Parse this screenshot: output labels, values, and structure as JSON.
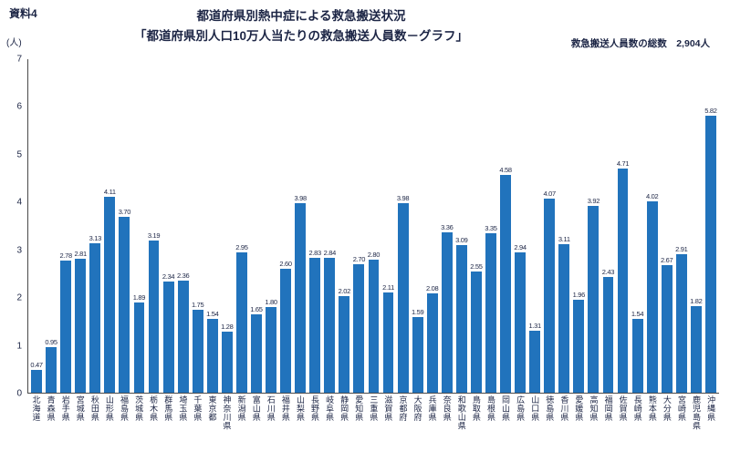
{
  "header": {
    "doc_label": "資料4",
    "title_line1": "都道府県別熱中症による救急搬送状況",
    "title_line2": "「都道府県別人口10万人当たりの救急搬送人員数－グラフ」",
    "total_label": "救急搬送人員数の総数　2,904人"
  },
  "chart_data": {
    "type": "bar",
    "title": "都道府県別人口10万人当たりの救急搬送人員数－グラフ",
    "y_unit": "(人)",
    "xlabel": "",
    "ylabel": "(人)",
    "ylim": [
      0,
      7
    ],
    "ytick_step": 1,
    "grid": false,
    "legend": false,
    "bar_color": "#2173bc",
    "categories": [
      "北海道",
      "青森県",
      "岩手県",
      "宮城県",
      "秋田県",
      "山形県",
      "福島県",
      "茨城県",
      "栃木県",
      "群馬県",
      "埼玉県",
      "千葉県",
      "東京都",
      "神奈川県",
      "新潟県",
      "富山県",
      "石川県",
      "福井県",
      "山梨県",
      "長野県",
      "岐阜県",
      "静岡県",
      "愛知県",
      "三重県",
      "滋賀県",
      "京都府",
      "大阪府",
      "兵庫県",
      "奈良県",
      "和歌山県",
      "鳥取県",
      "島根県",
      "岡山県",
      "広島県",
      "山口県",
      "徳島県",
      "香川県",
      "愛媛県",
      "高知県",
      "福岡県",
      "佐賀県",
      "長崎県",
      "熊本県",
      "大分県",
      "宮崎県",
      "鹿児島県",
      "沖縄県"
    ],
    "values": [
      0.47,
      0.95,
      2.78,
      2.81,
      3.13,
      4.11,
      3.7,
      1.89,
      3.19,
      2.34,
      2.36,
      1.75,
      1.54,
      1.28,
      2.95,
      1.65,
      1.8,
      2.6,
      3.98,
      2.83,
      2.84,
      2.02,
      2.7,
      2.8,
      2.11,
      3.98,
      1.59,
      2.08,
      3.36,
      3.09,
      2.55,
      3.35,
      4.58,
      2.94,
      1.31,
      4.07,
      3.11,
      1.96,
      3.92,
      2.43,
      4.71,
      1.54,
      4.02,
      2.67,
      2.91,
      1.82,
      5.82
    ]
  }
}
